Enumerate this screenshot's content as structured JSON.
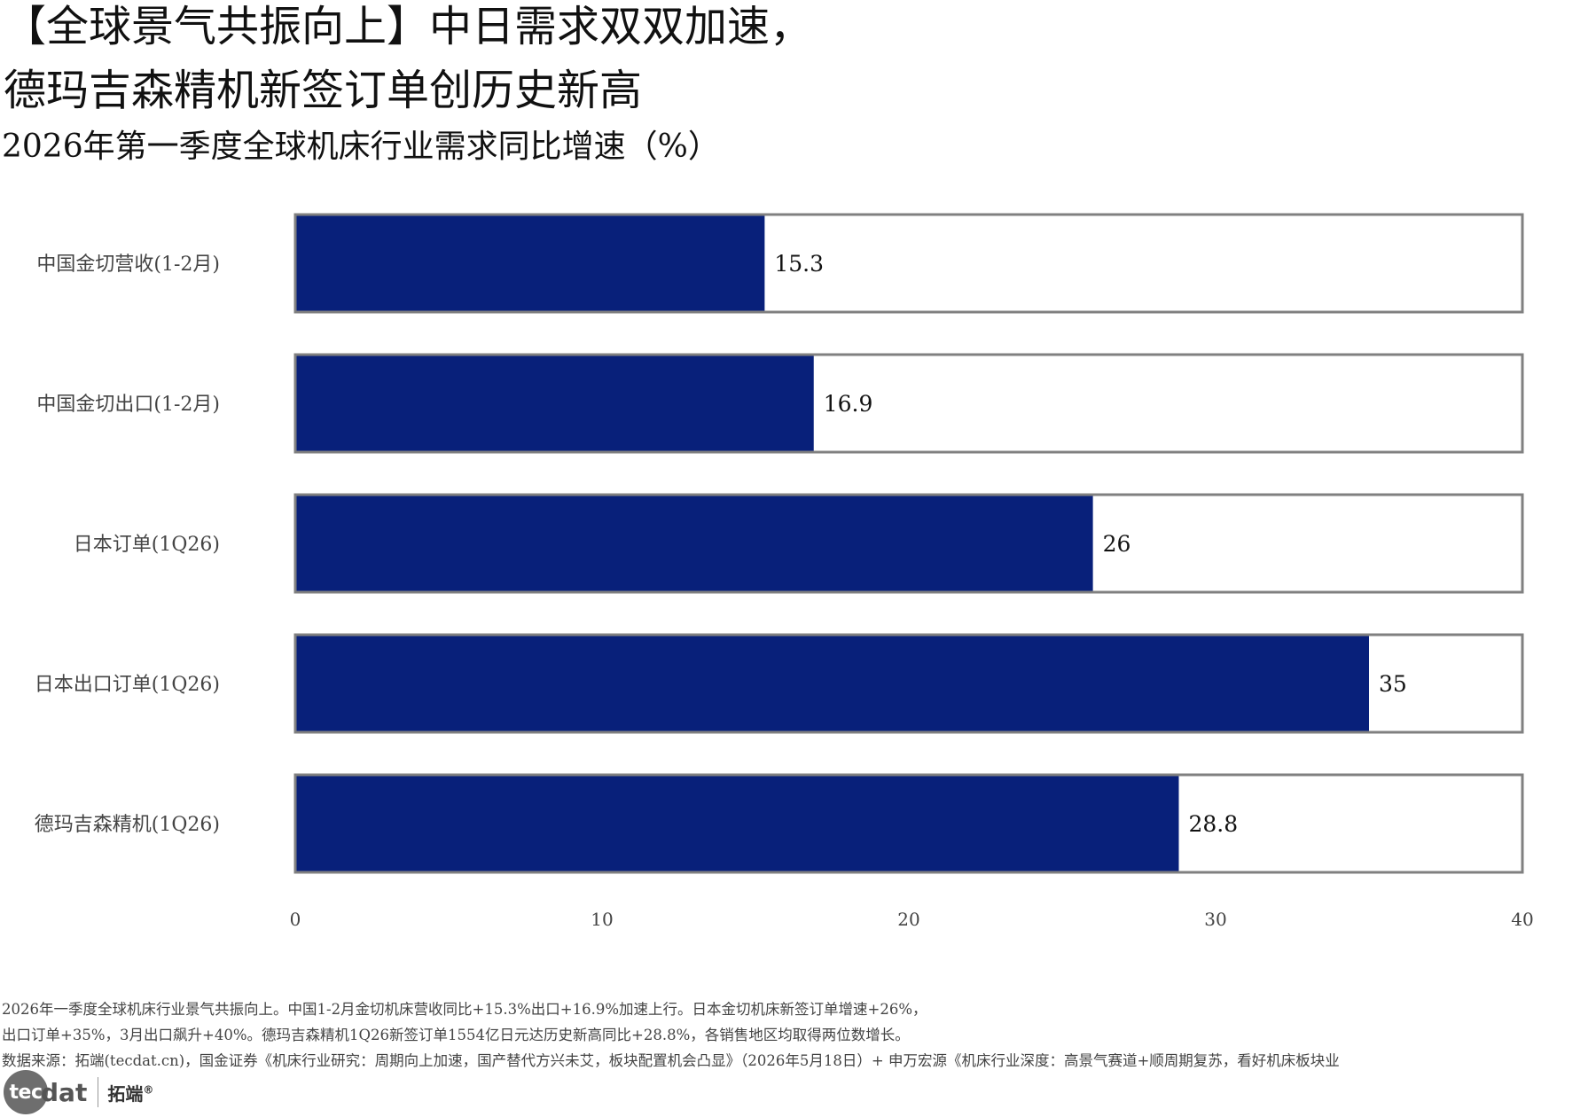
{
  "header": {
    "title_line1": "【全球景气共振向上】中日需求双双加速，",
    "title_line2": "德玛吉森精机新签订单创历史新高",
    "subtitle": "2026年第一季度全球机床行业需求同比增速（%）"
  },
  "chart_data": {
    "type": "bar",
    "orientation": "horizontal",
    "categories": [
      "中国金切营收(1-2月)",
      "中国金切出口(1-2月)",
      "日本订单(1Q26)",
      "日本出口订单(1Q26)",
      "德玛吉森精机(1Q26)"
    ],
    "values": [
      15.3,
      16.9,
      26,
      35,
      28.8
    ],
    "value_labels": [
      "15.3",
      "16.9",
      "26",
      "35",
      "28.8"
    ],
    "xlim": [
      0,
      40
    ],
    "xticks": [
      0,
      10,
      20,
      30,
      40
    ],
    "xtick_labels": [
      "0",
      "10",
      "20",
      "30",
      "40"
    ],
    "grid": false,
    "bar_color": "#08207a",
    "background_bar_color": "#ffffff",
    "bar_border_color": "#808080"
  },
  "notes": {
    "line1": "2026年一季度全球机床行业景气共振向上。中国1-2月金切机床营收同比+15.3%出口+16.9%加速上行。日本金切机床新签订单增速+26%，",
    "line2": "出口订单+35%，3月出口飙升+40%。德玛吉森精机1Q26新签订单1554亿日元达历史新高同比+28.8%，各销售地区均取得两位数增长。",
    "line3": "数据来源：拓端(tecdat.cn)，国金证券《机床行业研究：周期向上加速，国产替代方兴未艾，板块配置机会凸显》（2026年5月18日）+ 申万宏源《机床行业深度：高景气赛道+顺周期复苏，看好机床板块业"
  },
  "footer": {
    "logo_badge": "tec",
    "logo_word": "dat",
    "logo_cn": "拓端",
    "logo_reg": "®"
  }
}
